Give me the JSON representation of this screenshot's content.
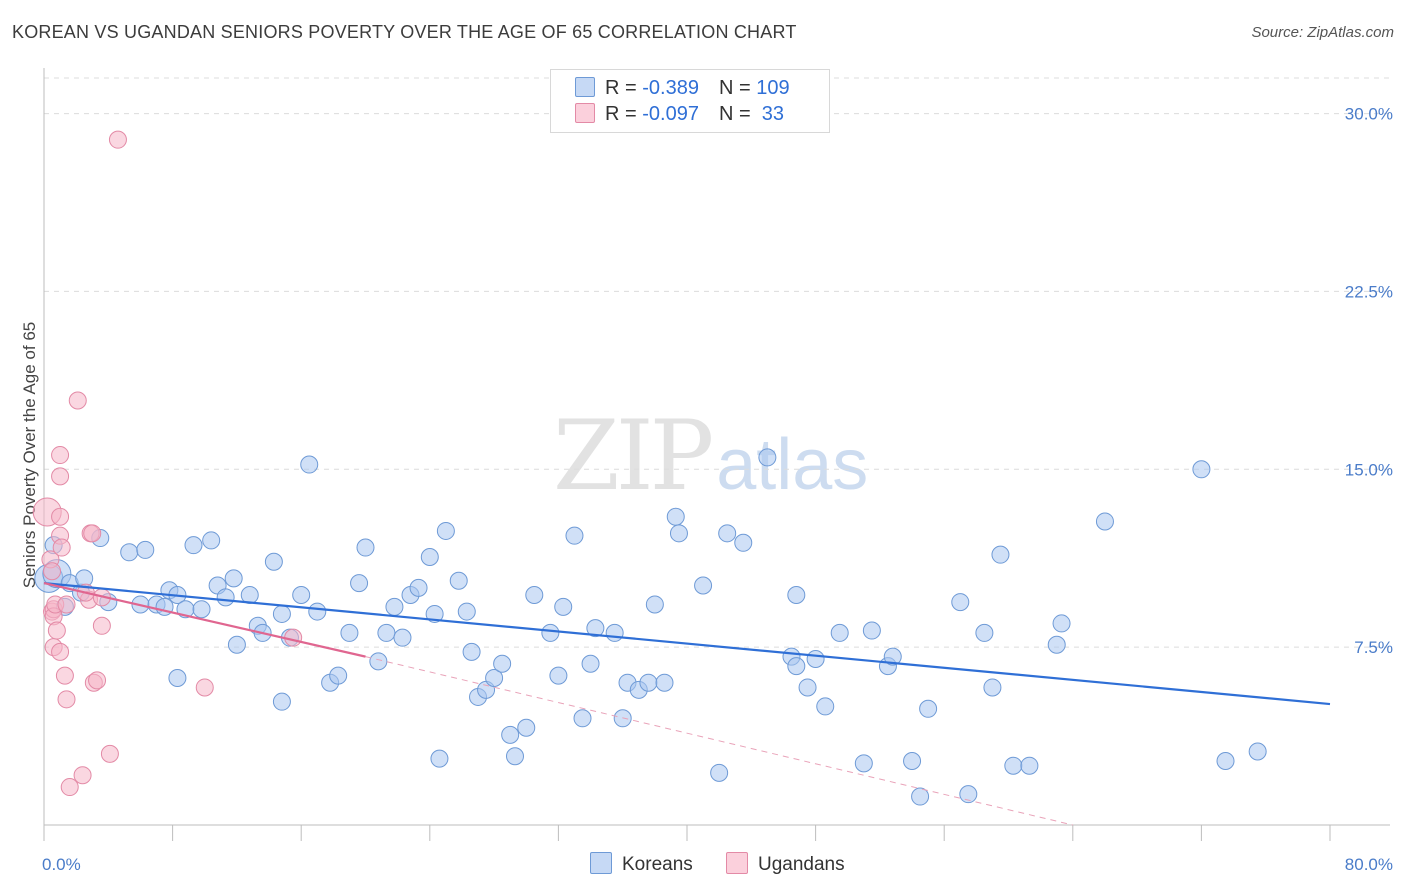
{
  "header": {
    "title": "KOREAN VS UGANDAN SENIORS POVERTY OVER THE AGE OF 65 CORRELATION CHART",
    "source": "Source: ZipAtlas.com"
  },
  "watermark": {
    "zip": "ZIP",
    "atlas": "atlas"
  },
  "legend": {
    "rows": [
      {
        "r_label": "R = ",
        "r_value": "-0.389",
        "n_label": "N = ",
        "n_value": "109",
        "color": "#a9c6f0"
      },
      {
        "r_label": "R = ",
        "r_value": "-0.097",
        "n_label": "N = ",
        "n_value": " 33",
        "color": "#f6b7c9"
      }
    ]
  },
  "bottom_legend": {
    "items": [
      {
        "label": "Koreans",
        "color": "#a9c6f0"
      },
      {
        "label": "Ugandans",
        "color": "#f6b7c9"
      }
    ]
  },
  "chart_data": {
    "type": "scatter",
    "title": "KOREAN VS UGANDAN SENIORS POVERTY OVER THE AGE OF 65 CORRELATION CHART",
    "xlabel": "",
    "ylabel": "Seniors Poverty Over the Age of 65",
    "xlim": [
      0,
      80
    ],
    "ylim": [
      0,
      31.5
    ],
    "x_tick_labels": [
      "0.0%",
      "80.0%"
    ],
    "y_ticks": [
      7.5,
      15.0,
      22.5,
      30.0
    ],
    "y_tick_labels": [
      "7.5%",
      "15.0%",
      "22.5%",
      "30.0%"
    ],
    "grid": "horizontal dashed",
    "legend_position": "top-center",
    "series": [
      {
        "name": "Koreans",
        "color": "#a9c6f0",
        "stroke": "#6e9ad6",
        "trend": {
          "x": [
            0,
            80
          ],
          "y": [
            10.2,
            5.1
          ],
          "color": "#2f6fd6"
        },
        "points": [
          [
            0.3,
            10.4
          ],
          [
            0.8,
            10.6
          ],
          [
            1.3,
            9.2
          ],
          [
            1.6,
            10.2
          ],
          [
            2.3,
            9.8
          ],
          [
            2.5,
            10.4
          ],
          [
            3.5,
            12.1
          ],
          [
            4.0,
            9.4
          ],
          [
            5.3,
            11.5
          ],
          [
            6.0,
            9.3
          ],
          [
            6.3,
            11.6
          ],
          [
            7.0,
            9.3
          ],
          [
            7.5,
            9.2
          ],
          [
            7.8,
            9.9
          ],
          [
            8.3,
            9.7
          ],
          [
            8.8,
            9.1
          ],
          [
            9.3,
            11.8
          ],
          [
            9.8,
            9.1
          ],
          [
            10.4,
            12.0
          ],
          [
            10.8,
            10.1
          ],
          [
            11.3,
            9.6
          ],
          [
            11.8,
            10.4
          ],
          [
            12.0,
            7.6
          ],
          [
            12.8,
            9.7
          ],
          [
            13.3,
            8.4
          ],
          [
            13.6,
            8.1
          ],
          [
            14.3,
            11.1
          ],
          [
            14.8,
            8.9
          ],
          [
            15.3,
            7.9
          ],
          [
            16.0,
            9.7
          ],
          [
            16.5,
            15.2
          ],
          [
            17.0,
            9.0
          ],
          [
            17.8,
            6.0
          ],
          [
            18.3,
            6.3
          ],
          [
            19.0,
            8.1
          ],
          [
            19.6,
            10.2
          ],
          [
            20.0,
            11.7
          ],
          [
            20.8,
            6.9
          ],
          [
            21.3,
            8.1
          ],
          [
            21.8,
            9.2
          ],
          [
            22.3,
            7.9
          ],
          [
            22.8,
            9.7
          ],
          [
            23.3,
            10.0
          ],
          [
            24.0,
            11.3
          ],
          [
            24.3,
            8.9
          ],
          [
            25.0,
            12.4
          ],
          [
            25.8,
            10.3
          ],
          [
            26.3,
            9.0
          ],
          [
            26.6,
            7.3
          ],
          [
            27.0,
            5.4
          ],
          [
            27.5,
            5.7
          ],
          [
            28.0,
            6.2
          ],
          [
            28.5,
            6.8
          ],
          [
            29.0,
            3.8
          ],
          [
            29.3,
            2.9
          ],
          [
            30.0,
            4.1
          ],
          [
            30.5,
            9.7
          ],
          [
            31.5,
            8.1
          ],
          [
            32.0,
            6.3
          ],
          [
            32.3,
            9.2
          ],
          [
            33.0,
            12.2
          ],
          [
            33.5,
            4.5
          ],
          [
            34.0,
            6.8
          ],
          [
            34.3,
            8.3
          ],
          [
            35.5,
            8.1
          ],
          [
            36.0,
            4.5
          ],
          [
            36.3,
            6.0
          ],
          [
            37.0,
            5.7
          ],
          [
            37.6,
            6.0
          ],
          [
            38.0,
            9.3
          ],
          [
            38.6,
            6.0
          ],
          [
            39.3,
            13.0
          ],
          [
            39.5,
            12.3
          ],
          [
            41.0,
            10.1
          ],
          [
            42.0,
            2.2
          ],
          [
            42.5,
            12.3
          ],
          [
            43.5,
            11.9
          ],
          [
            45.0,
            15.5
          ],
          [
            46.5,
            7.1
          ],
          [
            46.8,
            6.7
          ],
          [
            47.5,
            5.8
          ],
          [
            48.0,
            7.0
          ],
          [
            48.6,
            5.0
          ],
          [
            49.5,
            8.1
          ],
          [
            51.0,
            2.6
          ],
          [
            51.5,
            8.2
          ],
          [
            52.5,
            6.7
          ],
          [
            52.8,
            7.1
          ],
          [
            54.0,
            2.7
          ],
          [
            54.5,
            1.2
          ],
          [
            55.0,
            4.9
          ],
          [
            57.0,
            9.4
          ],
          [
            57.5,
            1.3
          ],
          [
            58.5,
            8.1
          ],
          [
            59.0,
            5.8
          ],
          [
            59.5,
            11.4
          ],
          [
            60.3,
            2.5
          ],
          [
            61.3,
            2.5
          ],
          [
            63.0,
            7.6
          ],
          [
            63.3,
            8.5
          ],
          [
            66.0,
            12.8
          ],
          [
            72.0,
            15.0
          ],
          [
            73.5,
            2.7
          ],
          [
            75.5,
            3.1
          ],
          [
            14.8,
            5.2
          ],
          [
            24.6,
            2.8
          ],
          [
            46.8,
            9.7
          ],
          [
            8.3,
            6.2
          ],
          [
            0.6,
            11.8
          ]
        ]
      },
      {
        "name": "Ugandans",
        "color": "#f6b7c9",
        "stroke": "#e38aa6",
        "trend": {
          "x": [
            0,
            20
          ],
          "y": [
            10.2,
            7.1
          ],
          "color": "#e06690"
        },
        "trend_dashed": {
          "x": [
            20,
            64
          ],
          "y": [
            7.1,
            0.0
          ]
        },
        "points": [
          [
            0.2,
            13.2
          ],
          [
            0.4,
            11.2
          ],
          [
            0.5,
            9.0
          ],
          [
            0.5,
            10.7
          ],
          [
            0.6,
            9.1
          ],
          [
            0.6,
            8.8
          ],
          [
            0.6,
            7.5
          ],
          [
            0.7,
            9.3
          ],
          [
            0.8,
            8.2
          ],
          [
            1.0,
            12.2
          ],
          [
            1.0,
            13.0
          ],
          [
            1.0,
            15.6
          ],
          [
            1.0,
            14.7
          ],
          [
            1.0,
            7.3
          ],
          [
            1.1,
            11.7
          ],
          [
            1.3,
            6.3
          ],
          [
            1.4,
            5.3
          ],
          [
            1.4,
            9.3
          ],
          [
            1.6,
            1.6
          ],
          [
            2.1,
            17.9
          ],
          [
            2.4,
            2.1
          ],
          [
            2.8,
            9.5
          ],
          [
            2.9,
            12.3
          ],
          [
            3.0,
            12.3
          ],
          [
            3.1,
            6.0
          ],
          [
            3.3,
            6.1
          ],
          [
            3.6,
            9.6
          ],
          [
            3.6,
            8.4
          ],
          [
            4.1,
            3.0
          ],
          [
            4.6,
            28.9
          ],
          [
            10.0,
            5.8
          ],
          [
            15.5,
            7.9
          ],
          [
            2.6,
            9.8
          ]
        ]
      }
    ]
  }
}
